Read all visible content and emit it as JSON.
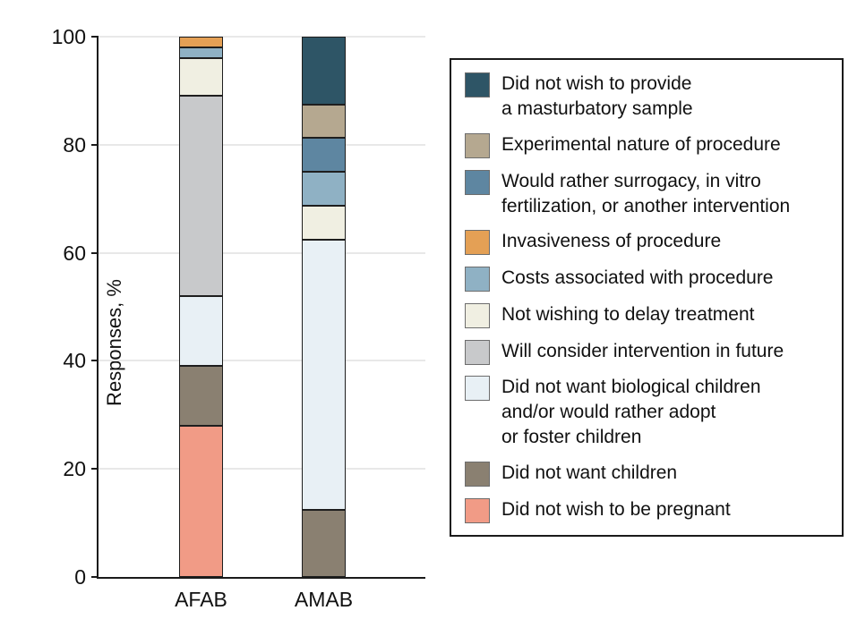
{
  "chart_data": {
    "type": "bar",
    "stacked": true,
    "title": "",
    "xlabel": "",
    "ylabel": "Responses, %",
    "ylim": [
      0,
      100
    ],
    "yticks": [
      0,
      20,
      40,
      60,
      80,
      100
    ],
    "grid": "horizontal",
    "legend_position": "right",
    "categories": [
      "AFAB",
      "AMAB"
    ],
    "stack_order": "bottom-to-top",
    "legend_order": "top-to-bottom is reverse of series order",
    "series": [
      {
        "name": "Did not wish to be pregnant",
        "color": "#F19B86",
        "values": [
          28,
          0
        ],
        "legend_lines": [
          "Did not wish to be pregnant"
        ]
      },
      {
        "name": "Did not want children",
        "color": "#8A8071",
        "values": [
          11,
          12.5
        ],
        "legend_lines": [
          "Did not want children"
        ]
      },
      {
        "name": "Did not want biological children and/or would rather adopt or foster children",
        "color": "#E8F0F5",
        "values": [
          13,
          50
        ],
        "legend_lines": [
          "Did not want biological children",
          "and/or would rather adopt",
          "or foster children"
        ]
      },
      {
        "name": "Will consider intervention in future",
        "color": "#C8C9CB",
        "values": [
          37,
          0
        ],
        "legend_lines": [
          "Will consider intervention in future"
        ]
      },
      {
        "name": "Not wishing to delay treatment",
        "color": "#F0EFE2",
        "values": [
          7,
          6.25
        ],
        "legend_lines": [
          "Not wishing to delay treatment"
        ]
      },
      {
        "name": "Costs associated with procedure",
        "color": "#8FB1C4",
        "values": [
          2,
          6.25
        ],
        "legend_lines": [
          "Costs associated with procedure"
        ]
      },
      {
        "name": "Invasiveness of procedure",
        "color": "#E4A055",
        "values": [
          2,
          0
        ],
        "legend_lines": [
          "Invasiveness of procedure"
        ]
      },
      {
        "name": "Would rather surrogacy, in vitro fertilization, or another intervention",
        "color": "#5E86A1",
        "values": [
          0,
          6.25
        ],
        "legend_lines": [
          "Would rather surrogacy, in vitro",
          "fertilization, or another intervention"
        ]
      },
      {
        "name": "Experimental nature of procedure",
        "color": "#B5A890",
        "values": [
          0,
          6.25
        ],
        "legend_lines": [
          "Experimental nature of procedure"
        ]
      },
      {
        "name": "Did not wish to provide a masturbatory sample",
        "color": "#2E5566",
        "values": [
          0,
          12.5
        ],
        "legend_lines": [
          "Did not wish to provide",
          "a masturbatory sample"
        ]
      }
    ]
  },
  "colors": {
    "background": "#ffffff",
    "axis": "#1a1a1a",
    "gridline": "#e8e8e8",
    "legend_border": "#1a1a1a",
    "swatch_border": "#6d6d6d",
    "text": "#111111"
  }
}
